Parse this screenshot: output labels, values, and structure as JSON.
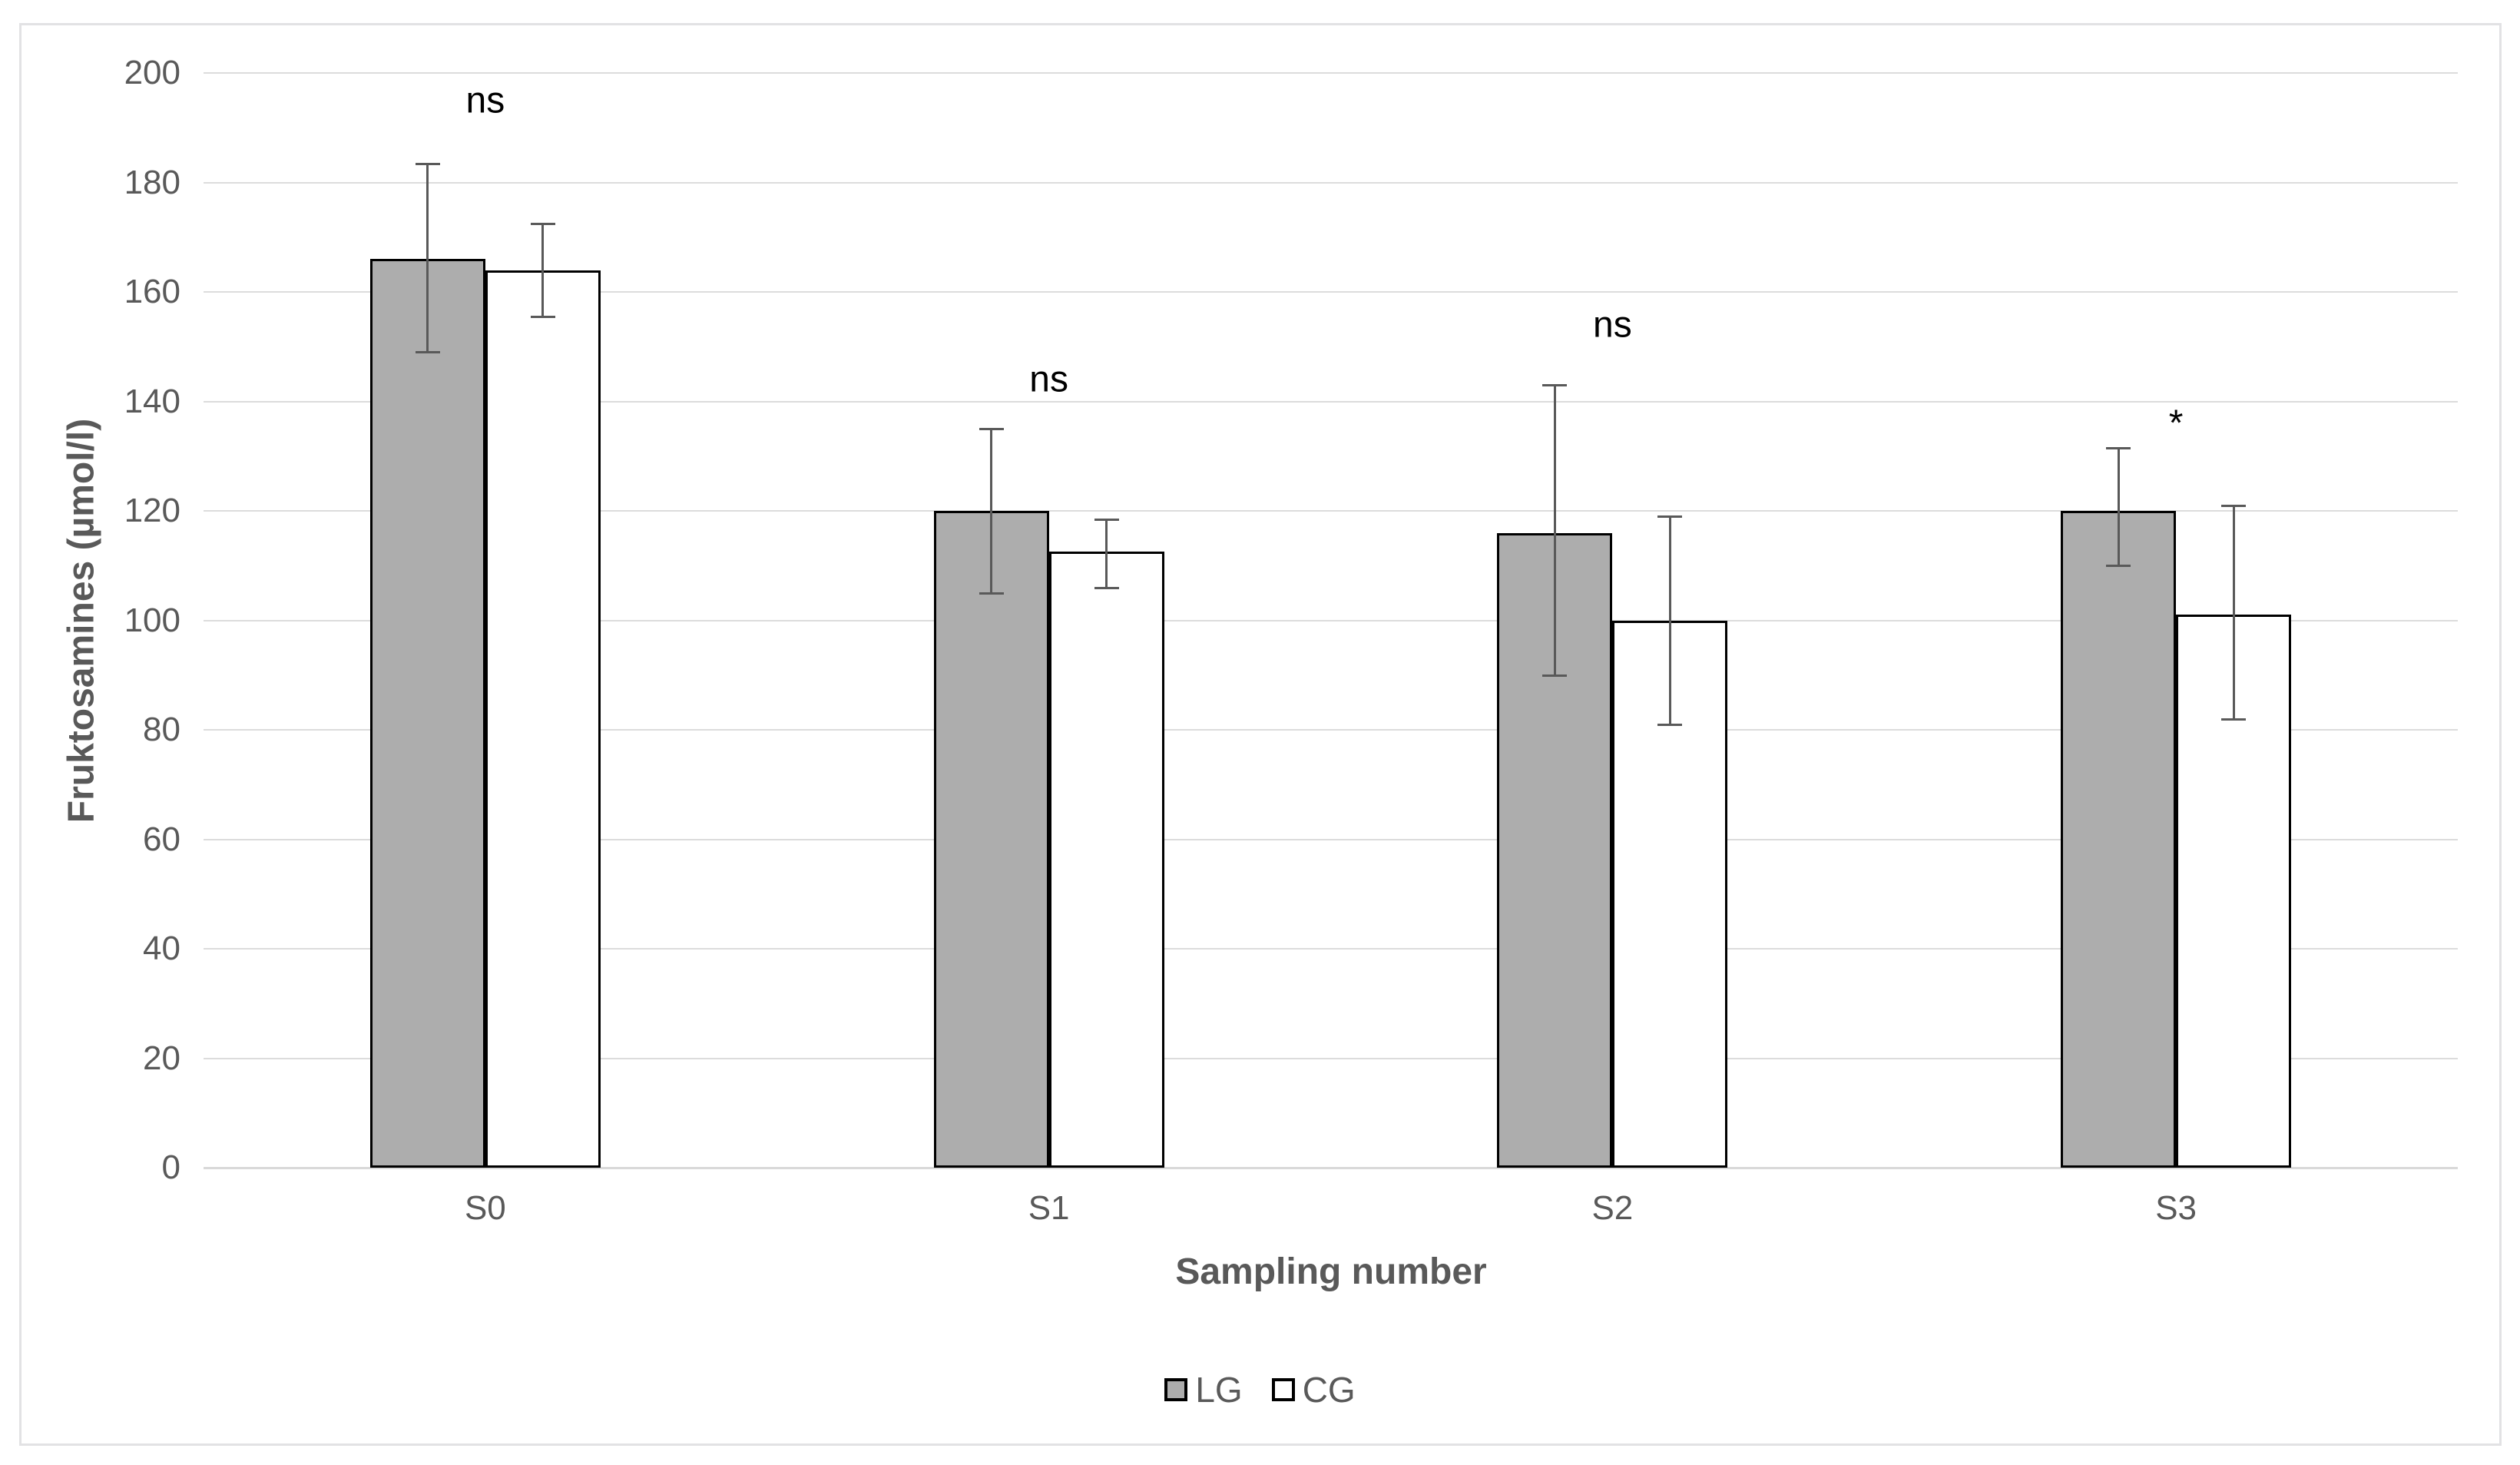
{
  "chart_data": {
    "type": "bar",
    "title": "",
    "xlabel": "Sampling number",
    "ylabel": "Fruktosamines (µmol/l)",
    "categories": [
      "S0",
      "S1",
      "S2",
      "S3"
    ],
    "series": [
      {
        "name": "LG",
        "fill": "#adadad",
        "values": [
          166,
          120,
          116,
          120
        ],
        "error_low": [
          149,
          105,
          90,
          110
        ],
        "error_high": [
          183.5,
          135,
          143,
          131.5
        ]
      },
      {
        "name": "CG",
        "fill": "#ffffff",
        "values": [
          164,
          112.5,
          100,
          101
        ],
        "error_low": [
          155.5,
          106,
          81,
          82
        ],
        "error_high": [
          172.5,
          118.5,
          119,
          121
        ]
      }
    ],
    "annotations": [
      {
        "category_index": 0,
        "label": "ns",
        "y": 195
      },
      {
        "category_index": 1,
        "label": "ns",
        "y": 144
      },
      {
        "category_index": 2,
        "label": "ns",
        "y": 154
      },
      {
        "category_index": 3,
        "label": "*",
        "y": 136
      }
    ],
    "ylim": [
      0,
      200
    ],
    "ytick_step": 20,
    "grid": true,
    "legend_position": "bottom"
  },
  "colors": {
    "lg_fill": "#adadad",
    "cg_fill": "#ffffff",
    "bar_border": "#000000",
    "error_bar": "#595959",
    "gridline": "#dcdcdc",
    "axis_text": "#595959",
    "annotation": "#000000",
    "figure_border": "#e2e2e4"
  }
}
